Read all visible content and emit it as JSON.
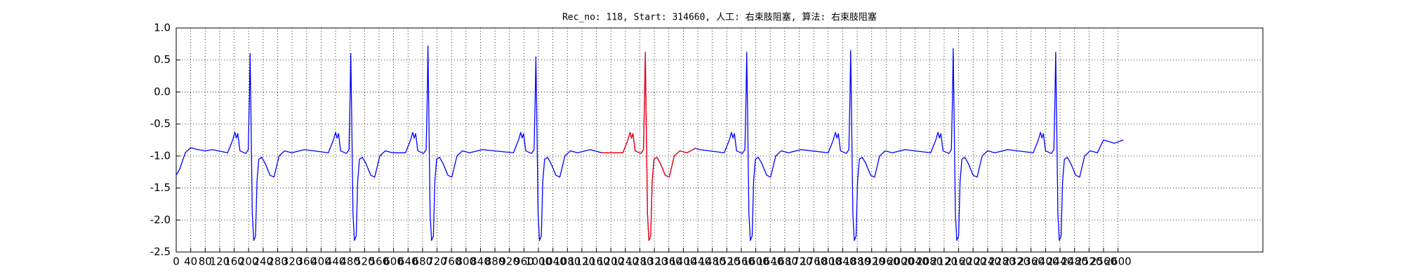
{
  "chart_data": {
    "type": "line",
    "title": "Rec_no: 118, Start: 314660, 人工: 右束肢阻塞, 算法: 右束肢阻塞",
    "xlim": [
      0,
      3000
    ],
    "ylim": [
      -2.5,
      1.0
    ],
    "xticks": [
      0,
      40,
      80,
      120,
      160,
      200,
      240,
      280,
      320,
      360,
      400,
      440,
      480,
      520,
      560,
      600,
      640,
      680,
      720,
      760,
      800,
      840,
      880,
      920,
      960,
      1000,
      1040,
      1080,
      1120,
      1160,
      1200,
      1240,
      1280,
      1320,
      1360,
      1400,
      1440,
      1480,
      1520,
      1560,
      1600,
      1640,
      1680,
      1720,
      1760,
      1800,
      1840,
      1880,
      1920,
      1960,
      2000,
      2040,
      2080,
      2120,
      2160,
      2200,
      2240,
      2280,
      2320,
      2360,
      2400,
      2440,
      2480,
      2520,
      2560,
      2600
    ],
    "yticks": [
      -2.5,
      {
        "value": -2,
        "label": "-2.0"
      },
      -1.5,
      {
        "value": -1,
        "label": "-1.0"
      },
      -0.5,
      {
        "value": 0,
        "label": "0.0"
      },
      0.5,
      {
        "value": 1,
        "label": "1.0"
      }
    ],
    "grid": true,
    "series": [
      {
        "color": "#0000ff",
        "x": [
          0,
          10,
          25,
          40,
          60,
          80,
          100,
          142,
          156,
          162,
          166,
          170,
          176,
          192,
          199,
          202,
          204,
          207,
          210,
          214,
          219,
          223,
          228,
          236,
          246,
          259,
          270,
          284,
          299,
          319,
          354,
          420,
          434,
          440,
          444,
          448,
          454,
          470,
          477,
          480,
          482,
          485,
          488,
          492,
          497,
          501,
          506,
          514,
          524,
          537,
          548,
          562,
          577,
          597,
          633,
          647,
          653,
          657,
          661,
          667,
          683,
          690,
          693,
          695,
          698,
          701,
          705,
          710,
          714,
          719,
          727,
          737,
          750,
          761,
          775,
          790,
          810,
          845,
          931,
          945,
          951,
          955,
          959,
          965,
          981,
          988,
          991,
          993,
          996,
          999,
          1003,
          1008,
          1012,
          1017,
          1025,
          1035,
          1048,
          1059,
          1073,
          1088,
          1108,
          1143,
          1175,
          1233,
          1247,
          1253,
          1257,
          1261,
          1267,
          1283,
          1290,
          1293,
          1295,
          1298,
          1301,
          1305,
          1310,
          1314,
          1319,
          1327,
          1337,
          1350,
          1361,
          1375,
          1390,
          1410,
          1433,
          1445,
          1513,
          1527,
          1533,
          1537,
          1541,
          1547,
          1563,
          1570,
          1573,
          1575,
          1578,
          1581,
          1585,
          1590,
          1594,
          1599,
          1607,
          1617,
          1630,
          1641,
          1655,
          1670,
          1690,
          1725,
          1800,
          1814,
          1820,
          1824,
          1828,
          1834,
          1850,
          1857,
          1860,
          1862,
          1865,
          1868,
          1872,
          1877,
          1881,
          1886,
          1894,
          1904,
          1917,
          1928,
          1942,
          1957,
          1977,
          2012,
          2083,
          2097,
          2103,
          2107,
          2111,
          2117,
          2133,
          2140,
          2143,
          2145,
          2148,
          2151,
          2155,
          2160,
          2164,
          2169,
          2177,
          2187,
          2200,
          2211,
          2225,
          2240,
          2260,
          2295,
          2366,
          2380,
          2386,
          2390,
          2394,
          2400,
          2416,
          2423,
          2426,
          2428,
          2431,
          2434,
          2438,
          2443,
          2447,
          2452,
          2460,
          2470,
          2483,
          2494,
          2508,
          2523,
          2543,
          2560,
          2590,
          2615
        ],
        "values": [
          -1.3,
          -1.2,
          -0.95,
          -0.87,
          -0.9,
          -0.92,
          -0.9,
          -0.95,
          -0.75,
          -0.63,
          -0.72,
          -0.65,
          -0.92,
          -0.96,
          -0.9,
          -0.1,
          0.6,
          -0.6,
          -1.9,
          -2.32,
          -2.25,
          -1.4,
          -1.05,
          -1.02,
          -1.12,
          -1.3,
          -1.33,
          -1.0,
          -0.92,
          -0.95,
          -0.9,
          -0.95,
          -0.75,
          -0.63,
          -0.72,
          -0.65,
          -0.92,
          -0.96,
          -0.9,
          -0.1,
          0.6,
          -0.6,
          -1.9,
          -2.32,
          -2.25,
          -1.4,
          -1.05,
          -1.02,
          -1.12,
          -1.3,
          -1.33,
          -1.0,
          -0.92,
          -0.95,
          -0.95,
          -0.75,
          -0.63,
          -0.72,
          -0.65,
          -0.92,
          -0.96,
          -0.9,
          -0.1,
          0.72,
          -0.6,
          -1.9,
          -2.32,
          -2.25,
          -1.4,
          -1.05,
          -1.02,
          -1.12,
          -1.3,
          -1.33,
          -1.0,
          -0.92,
          -0.95,
          -0.9,
          -0.95,
          -0.75,
          -0.63,
          -0.72,
          -0.65,
          -0.92,
          -0.96,
          -0.9,
          -0.1,
          0.55,
          -0.6,
          -1.9,
          -2.32,
          -2.25,
          -1.4,
          -1.05,
          -1.02,
          -1.12,
          -1.3,
          -1.33,
          -1.0,
          -0.92,
          -0.95,
          -0.9,
          -0.95,
          -0.95,
          -0.75,
          -0.63,
          -0.72,
          -0.65,
          -0.92,
          -0.96,
          -0.9,
          -0.1,
          0.62,
          -0.6,
          -1.9,
          -2.32,
          -2.25,
          -1.4,
          -1.05,
          -1.02,
          -1.12,
          -1.3,
          -1.33,
          -1.0,
          -0.92,
          -0.95,
          -0.88,
          -0.9,
          -0.95,
          -0.75,
          -0.63,
          -0.72,
          -0.65,
          -0.92,
          -0.96,
          -0.9,
          -0.1,
          0.62,
          -0.6,
          -1.9,
          -2.32,
          -2.25,
          -1.4,
          -1.05,
          -1.02,
          -1.12,
          -1.3,
          -1.33,
          -1.0,
          -0.92,
          -0.95,
          -0.9,
          -0.95,
          -0.75,
          -0.63,
          -0.72,
          -0.65,
          -0.92,
          -0.96,
          -0.9,
          -0.1,
          0.65,
          -0.6,
          -1.9,
          -2.32,
          -2.25,
          -1.4,
          -1.05,
          -1.02,
          -1.12,
          -1.3,
          -1.33,
          -1.0,
          -0.92,
          -0.95,
          -0.9,
          -0.95,
          -0.75,
          -0.63,
          -0.72,
          -0.65,
          -0.92,
          -0.96,
          -0.9,
          -0.1,
          0.68,
          -0.6,
          -1.9,
          -2.32,
          -2.25,
          -1.4,
          -1.05,
          -1.02,
          -1.12,
          -1.3,
          -1.33,
          -1.0,
          -0.92,
          -0.95,
          -0.9,
          -0.95,
          -0.75,
          -0.63,
          -0.72,
          -0.65,
          -0.92,
          -0.96,
          -0.9,
          -0.1,
          0.62,
          -0.6,
          -1.9,
          -2.32,
          -2.25,
          -1.4,
          -1.05,
          -1.02,
          -1.12,
          -1.3,
          -1.33,
          -1.0,
          -0.92,
          -0.95,
          -0.75,
          -0.8,
          -0.75
        ]
      },
      {
        "color": "#ff0000",
        "x": [
          1175,
          1233,
          1247,
          1253,
          1257,
          1261,
          1267,
          1283,
          1290,
          1293,
          1295,
          1298,
          1301,
          1305,
          1310,
          1314,
          1319,
          1327,
          1337,
          1350,
          1361,
          1375,
          1390,
          1410,
          1433
        ],
        "values": [
          -0.95,
          -0.95,
          -0.75,
          -0.63,
          -0.72,
          -0.65,
          -0.92,
          -0.96,
          -0.9,
          -0.1,
          0.62,
          -0.6,
          -1.9,
          -2.32,
          -2.25,
          -1.4,
          -1.05,
          -1.02,
          -1.12,
          -1.3,
          -1.33,
          -1.0,
          -0.92,
          -0.95,
          -0.88
        ]
      }
    ]
  }
}
